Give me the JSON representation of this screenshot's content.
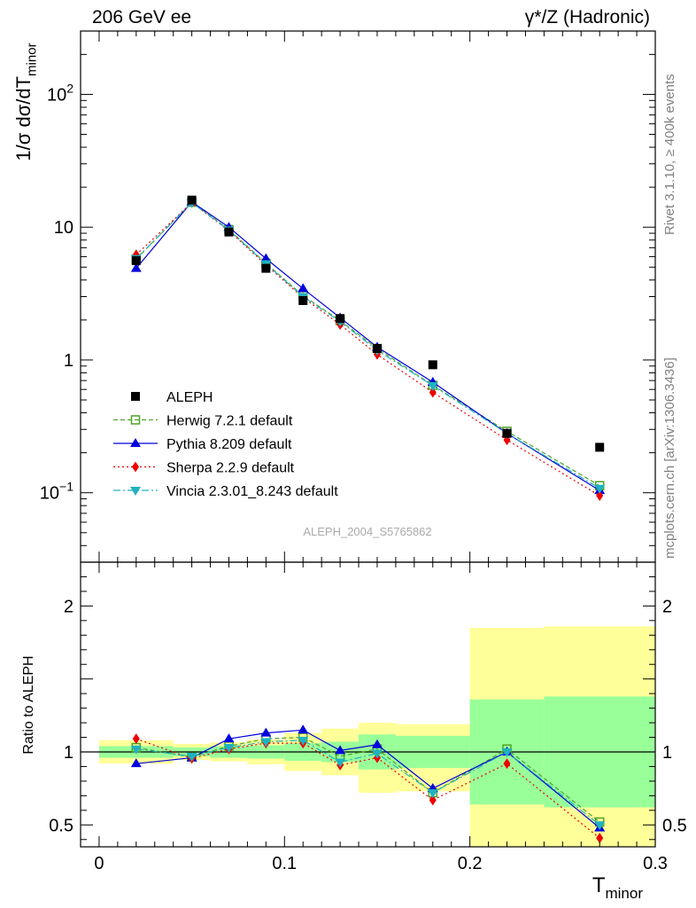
{
  "header": {
    "left_title": "206 GeV ee",
    "right_title": "γ*/Z (Hadronic)"
  },
  "side_labels": {
    "rivet": "Rivet 3.1.10, ≥ 400k events",
    "mcplots": "mcplots.cern.ch [arXiv:1306.3436]"
  },
  "watermark": "ALEPH_2004_S5765862",
  "chart_data": [
    {
      "type": "scatter",
      "panel": "main",
      "ylabel": "1/σ dσ/dT_minor",
      "yscale": "log",
      "ylim": [
        0.03,
        300
      ],
      "xlim": [
        -0.01,
        0.3
      ],
      "yticks": [
        {
          "value": 0.1,
          "label": "10^−1"
        },
        {
          "value": 1,
          "label": "1"
        },
        {
          "value": 10,
          "label": "10"
        },
        {
          "value": 100,
          "label": "10^2"
        }
      ],
      "x": [
        0.02,
        0.05,
        0.07,
        0.09,
        0.11,
        0.13,
        0.15,
        0.18,
        0.22,
        0.27
      ],
      "series": [
        {
          "name": "ALEPH",
          "color": "#000000",
          "marker": "square",
          "line": "none",
          "values": [
            5.6,
            16.0,
            9.2,
            4.9,
            2.8,
            2.05,
            1.22,
            0.92,
            0.28,
            0.22
          ]
        },
        {
          "name": "Herwig 7.2.1 default",
          "color": "#4fa32a",
          "marker": "open-square",
          "line": "dashed",
          "values": [
            5.75,
            15.4,
            9.6,
            5.35,
            3.05,
            1.98,
            1.22,
            0.645,
            0.29,
            0.113
          ]
        },
        {
          "name": "Pythia 8.209 default",
          "color": "#0000dd",
          "marker": "triangle-up",
          "line": "solid",
          "values": [
            4.9,
            15.5,
            10.0,
            5.8,
            3.45,
            2.08,
            1.25,
            0.68,
            0.28,
            0.104
          ]
        },
        {
          "name": "Sherpa 2.2.9 default",
          "color": "#ee0000",
          "marker": "diamond",
          "line": "dotted",
          "values": [
            6.2,
            15.3,
            9.4,
            5.2,
            2.95,
            1.85,
            1.1,
            0.57,
            0.25,
            0.095
          ]
        },
        {
          "name": "Vincia 2.3.01_8.243 default",
          "color": "#20b2c0",
          "marker": "triangle-down",
          "line": "dashdot",
          "values": [
            5.8,
            15.3,
            9.5,
            5.3,
            3.0,
            1.95,
            1.18,
            0.64,
            0.28,
            0.108
          ]
        }
      ]
    },
    {
      "type": "line",
      "panel": "ratio",
      "ylabel": "Ratio to ALEPH",
      "xlabel": "T_minor",
      "ylim": [
        0.35,
        2.3
      ],
      "xlim": [
        -0.01,
        0.3
      ],
      "xticks": [
        0,
        0.1,
        0.2,
        0.3
      ],
      "yticks": [
        0.5,
        1,
        2
      ],
      "bands": [
        {
          "x": [
            0.0,
            0.04
          ],
          "inner": [
            0.96,
            1.04
          ],
          "outer": [
            0.92,
            1.08
          ]
        },
        {
          "x": [
            0.04,
            0.06
          ],
          "inner": [
            0.97,
            1.03
          ],
          "outer": [
            0.945,
            1.055
          ]
        },
        {
          "x": [
            0.06,
            0.08
          ],
          "inner": [
            0.96,
            1.04
          ],
          "outer": [
            0.935,
            1.065
          ]
        },
        {
          "x": [
            0.08,
            0.1
          ],
          "inner": [
            0.955,
            1.045
          ],
          "outer": [
            0.915,
            1.085
          ]
        },
        {
          "x": [
            0.1,
            0.12
          ],
          "inner": [
            0.94,
            1.06
          ],
          "outer": [
            0.87,
            1.13
          ]
        },
        {
          "x": [
            0.12,
            0.14
          ],
          "inner": [
            0.93,
            1.07
          ],
          "outer": [
            0.84,
            1.16
          ]
        },
        {
          "x": [
            0.14,
            0.16
          ],
          "inner": [
            0.88,
            1.12
          ],
          "outer": [
            0.72,
            1.2
          ]
        },
        {
          "x": [
            0.16,
            0.2
          ],
          "inner": [
            0.89,
            1.11
          ],
          "outer": [
            0.73,
            1.19
          ]
        },
        {
          "x": [
            0.2,
            0.24
          ],
          "inner": [
            0.64,
            1.36
          ],
          "outer": [
            0.35,
            1.85
          ]
        },
        {
          "x": [
            0.24,
            0.3
          ],
          "inner": [
            0.62,
            1.38
          ],
          "outer": [
            0.35,
            1.86
          ]
        }
      ],
      "x": [
        0.02,
        0.05,
        0.07,
        0.09,
        0.11,
        0.13,
        0.15,
        0.18,
        0.22,
        0.27
      ],
      "series": [
        {
          "name": "Herwig 7.2.1 default",
          "color": "#4fa32a",
          "marker": "open-square",
          "line": "dashed",
          "values": [
            1.03,
            0.965,
            1.04,
            1.09,
            1.1,
            0.97,
            1.02,
            0.72,
            1.02,
            0.52
          ]
        },
        {
          "name": "Pythia 8.209 default",
          "color": "#0000dd",
          "marker": "triangle-up",
          "line": "solid",
          "values": [
            0.92,
            0.96,
            1.09,
            1.13,
            1.15,
            1.01,
            1.05,
            0.75,
            1.0,
            0.48
          ]
        },
        {
          "name": "Sherpa 2.2.9 default",
          "color": "#ee0000",
          "marker": "diamond",
          "line": "dotted",
          "values": [
            1.09,
            0.955,
            1.02,
            1.06,
            1.06,
            0.91,
            0.96,
            0.67,
            0.92,
            0.41
          ]
        },
        {
          "name": "Vincia 2.3.01_8.243 default",
          "color": "#20b2c0",
          "marker": "triangle-down",
          "line": "dashdot",
          "values": [
            1.02,
            0.97,
            1.03,
            1.07,
            1.08,
            0.93,
            0.99,
            0.72,
            1.0,
            0.5
          ]
        }
      ]
    }
  ]
}
